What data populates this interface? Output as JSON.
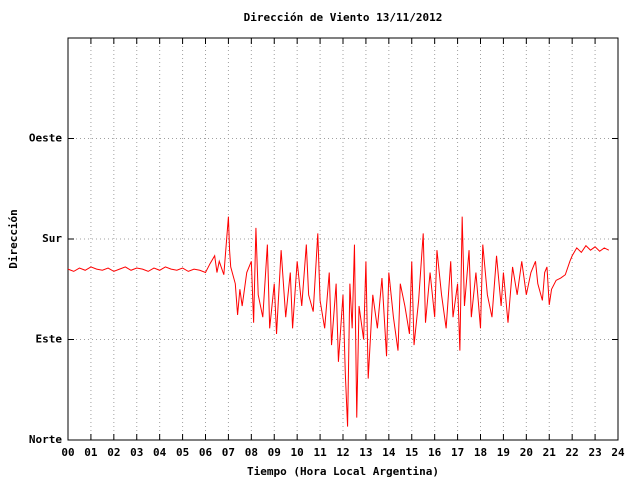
{
  "chart_data": {
    "type": "line",
    "title": "Dirección de Viento 13/11/2012",
    "x_label": "Tiempo (Hora Local Argentina)",
    "y_label": "Dirección",
    "color": "#ff0000",
    "grid": true,
    "xlim": [
      0,
      24
    ],
    "ylim": [
      0,
      360
    ],
    "xticks": [
      {
        "value": 0,
        "label": "00"
      },
      {
        "value": 1,
        "label": "01"
      },
      {
        "value": 2,
        "label": "02"
      },
      {
        "value": 3,
        "label": "03"
      },
      {
        "value": 4,
        "label": "04"
      },
      {
        "value": 5,
        "label": "05"
      },
      {
        "value": 6,
        "label": "06"
      },
      {
        "value": 7,
        "label": "07"
      },
      {
        "value": 8,
        "label": "08"
      },
      {
        "value": 9,
        "label": "09"
      },
      10,
      11,
      12,
      13,
      14,
      15,
      16,
      17,
      18,
      19,
      20,
      21,
      22,
      23,
      24
    ],
    "yticks": [
      {
        "value": 0,
        "label": "Norte"
      },
      {
        "value": 90,
        "label": "Este"
      },
      {
        "value": 180,
        "label": "Sur"
      },
      {
        "value": 270,
        "label": "Oeste"
      }
    ],
    "x": [
      0,
      0.25,
      0.5,
      0.75,
      1,
      1.25,
      1.5,
      1.75,
      2,
      2.25,
      2.5,
      2.75,
      3,
      3.25,
      3.5,
      3.75,
      4,
      4.25,
      4.5,
      4.75,
      5,
      5.25,
      5.5,
      5.75,
      6,
      6.2,
      6.4,
      6.5,
      6.6,
      6.8,
      7,
      7.05,
      7.1,
      7.3,
      7.4,
      7.5,
      7.6,
      7.8,
      8,
      8.1,
      8.2,
      8.3,
      8.5,
      8.7,
      8.8,
      9,
      9.1,
      9.3,
      9.5,
      9.7,
      9.8,
      10,
      10.2,
      10.4,
      10.5,
      10.7,
      10.9,
      11,
      11.2,
      11.4,
      11.5,
      11.7,
      11.8,
      12,
      12.1,
      12.2,
      12.3,
      12.4,
      12.5,
      12.6,
      12.7,
      12.9,
      13,
      13.1,
      13.3,
      13.5,
      13.7,
      13.9,
      14,
      14.2,
      14.4,
      14.5,
      14.7,
      14.9,
      15,
      15.1,
      15.3,
      15.5,
      15.6,
      15.8,
      16,
      16.1,
      16.3,
      16.5,
      16.7,
      16.8,
      17,
      17.1,
      17.2,
      17.3,
      17.5,
      17.6,
      17.8,
      18,
      18.1,
      18.3,
      18.5,
      18.7,
      18.9,
      19,
      19.2,
      19.4,
      19.6,
      19.8,
      20,
      20.2,
      20.4,
      20.5,
      20.7,
      20.8,
      20.9,
      21,
      21.1,
      21.3,
      21.5,
      21.7,
      21.9,
      22,
      22.2,
      22.4,
      22.6,
      22.8,
      23,
      23.2,
      23.4,
      23.6
    ],
    "values": [
      153,
      151,
      154,
      152,
      155,
      153,
      152,
      154,
      151,
      153,
      155,
      152,
      154,
      153,
      151,
      154,
      152,
      155,
      153,
      152,
      154,
      151,
      153,
      152,
      150,
      158,
      165,
      150,
      160,
      148,
      200,
      170,
      155,
      140,
      112,
      135,
      120,
      150,
      160,
      105,
      190,
      130,
      110,
      175,
      100,
      140,
      95,
      170,
      110,
      150,
      100,
      160,
      120,
      175,
      130,
      115,
      185,
      125,
      100,
      150,
      85,
      140,
      70,
      130,
      60,
      12,
      140,
      100,
      175,
      20,
      120,
      90,
      160,
      55,
      130,
      100,
      145,
      75,
      150,
      110,
      80,
      140,
      120,
      95,
      160,
      85,
      125,
      185,
      105,
      150,
      110,
      170,
      130,
      100,
      160,
      110,
      140,
      80,
      200,
      120,
      170,
      110,
      150,
      100,
      175,
      130,
      110,
      165,
      120,
      150,
      105,
      155,
      130,
      160,
      130,
      150,
      160,
      140,
      125,
      150,
      155,
      121,
      135,
      143,
      145,
      148,
      160,
      165,
      172,
      168,
      174,
      170,
      173,
      169,
      172,
      170
    ]
  }
}
